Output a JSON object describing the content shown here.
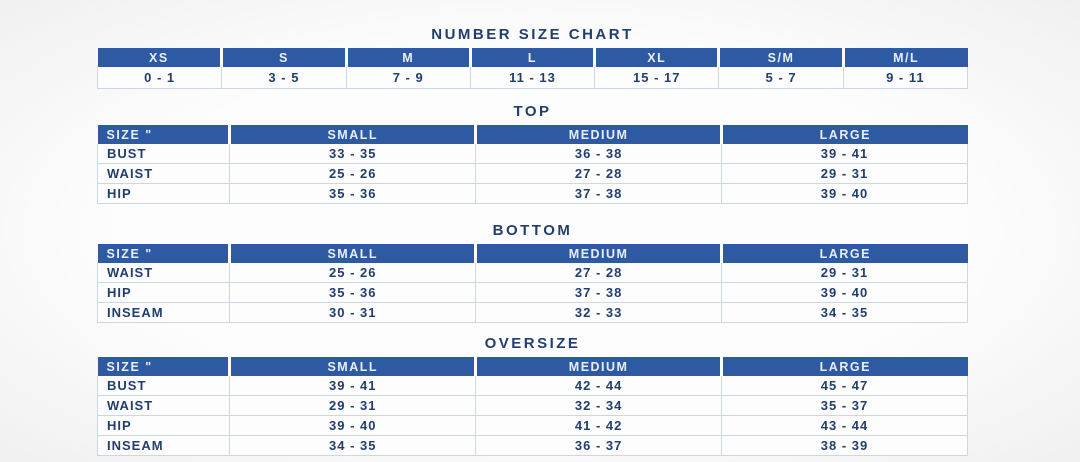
{
  "colors": {
    "header_bg": "#2d5aa3",
    "header_text": "#e9eef6",
    "body_text": "#223e6f",
    "grid_line": "#ccd7e5"
  },
  "number_size_chart": {
    "title": "NUMBER SIZE CHART",
    "columns": [
      "XS",
      "S",
      "M",
      "L",
      "XL",
      "S/M",
      "M/L"
    ],
    "values": [
      "0 - 1",
      "3 - 5",
      "7 - 9",
      "11 - 13",
      "15 - 17",
      "5 - 7",
      "9 - 11"
    ]
  },
  "measurement_tables": [
    {
      "title": "TOP",
      "header": [
        "SIZE \"",
        "SMALL",
        "MEDIUM",
        "LARGE"
      ],
      "rows": [
        [
          "BUST",
          "33 - 35",
          "36 - 38",
          "39 - 41"
        ],
        [
          "WAIST",
          "25 - 26",
          "27 - 28",
          "29 - 31"
        ],
        [
          "HIP",
          "35 - 36",
          "37 - 38",
          "39 - 40"
        ]
      ]
    },
    {
      "title": "BOTTOM",
      "header": [
        "SIZE \"",
        "SMALL",
        "MEDIUM",
        "LARGE"
      ],
      "rows": [
        [
          "WAIST",
          "25 - 26",
          "27 - 28",
          "29 - 31"
        ],
        [
          "HIP",
          "35 - 36",
          "37 - 38",
          "39 - 40"
        ],
        [
          "INSEAM",
          "30 - 31",
          "32 - 33",
          "34 - 35"
        ]
      ]
    },
    {
      "title": "OVERSIZE",
      "header": [
        "SIZE \"",
        "SMALL",
        "MEDIUM",
        "LARGE"
      ],
      "rows": [
        [
          "BUST",
          "39 - 41",
          "42 - 44",
          "45 - 47"
        ],
        [
          "WAIST",
          "29 - 31",
          "32 - 34",
          "35 - 37"
        ],
        [
          "HIP",
          "39 - 40",
          "41 - 42",
          "43 - 44"
        ],
        [
          "INSEAM",
          "34 - 35",
          "36 - 37",
          "38 - 39"
        ]
      ]
    }
  ]
}
